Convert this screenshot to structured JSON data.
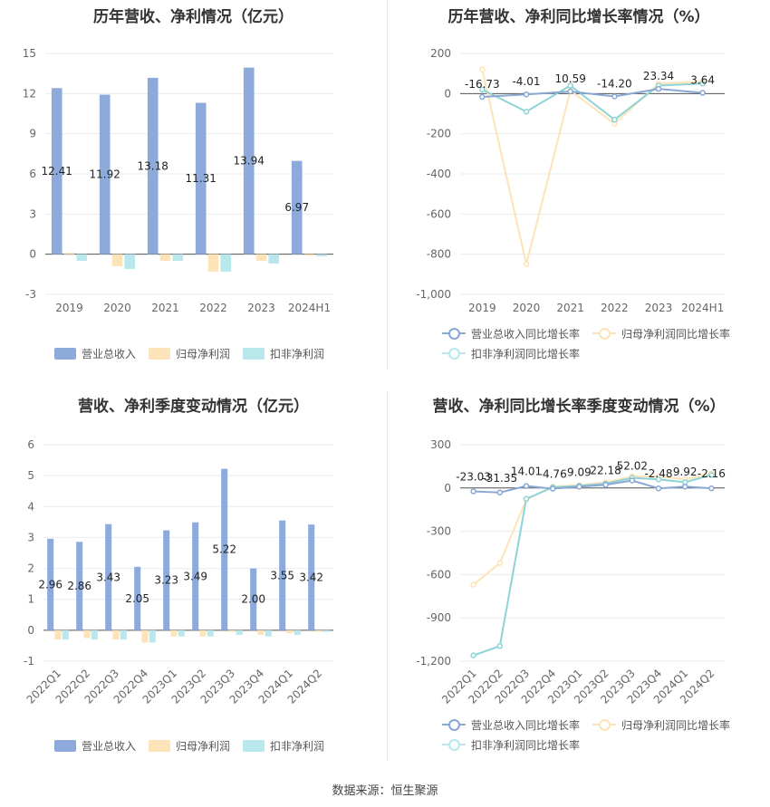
{
  "source": "数据来源：恒生聚源",
  "colors": {
    "revenue": "#8eaadb",
    "parent": "#fde3b8",
    "deducted": "#b9e8ec",
    "revenue_line": "#8aa8d4",
    "parent_line": "#fde3b8",
    "deducted_line": "#8dd3d7"
  },
  "charts": [
    {
      "title": "历年营收、净利情况（亿元）",
      "chart_data": {
        "type": "bar",
        "categories": [
          "2019",
          "2020",
          "2021",
          "2022",
          "2023",
          "2024H1"
        ],
        "yticks": [
          "15",
          "12",
          "9",
          "6",
          "3",
          "0",
          "-3"
        ],
        "ylim": [
          -3,
          15
        ],
        "series": [
          {
            "name": "营业总收入",
            "values": [
              12.41,
              11.92,
              13.18,
              11.31,
              13.94,
              6.97
            ],
            "labels": [
              "12.41",
              "11.92",
              "13.18",
              "11.31",
              "13.94",
              "6.97"
            ]
          },
          {
            "name": "归母净利润",
            "values": [
              0.1,
              -0.9,
              -0.5,
              -1.3,
              -0.5,
              -0.1
            ]
          },
          {
            "name": "扣非净利润",
            "values": [
              -0.5,
              -1.1,
              -0.5,
              -1.3,
              -0.7,
              -0.15
            ]
          }
        ]
      }
    },
    {
      "title": "历年营收、净利同比增长率情况（%）",
      "chart_data": {
        "type": "line",
        "categories": [
          "2019",
          "2020",
          "2021",
          "2022",
          "2023",
          "2024H1"
        ],
        "yticks": [
          "200",
          "0",
          "-200",
          "-400",
          "-600",
          "-800",
          "-1,000"
        ],
        "ylim": [
          -1000,
          200
        ],
        "series": [
          {
            "name": "营业总收入同比增长率",
            "values": [
              -16.73,
              -4.01,
              10.59,
              -14.2,
              23.34,
              3.64
            ],
            "labels": [
              "-16.73",
              "-4.01",
              "10.59",
              "-14.20",
              "23.34",
              "3.64"
            ]
          },
          {
            "name": "归母净利润同比增长率",
            "values": [
              120,
              -850,
              15,
              -150,
              50,
              60
            ]
          },
          {
            "name": "扣非净利润同比增长率",
            "values": [
              20,
              -90,
              40,
              -130,
              40,
              50
            ]
          }
        ]
      }
    },
    {
      "title": "营收、净利季度变动情况（亿元）",
      "chart_data": {
        "type": "bar",
        "categories": [
          "2022Q1",
          "2022Q2",
          "2022Q3",
          "2022Q4",
          "2023Q1",
          "2023Q2",
          "2023Q3",
          "2023Q4",
          "2024Q1",
          "2024Q2"
        ],
        "yticks": [
          "6",
          "5",
          "4",
          "3",
          "2",
          "1",
          "0",
          "-1"
        ],
        "ylim": [
          -1,
          6
        ],
        "series": [
          {
            "name": "营业总收入",
            "values": [
              2.96,
              2.86,
              3.43,
              2.05,
              3.23,
              3.49,
              5.22,
              2.0,
              3.55,
              3.42
            ],
            "labels": [
              "2.96",
              "2.86",
              "3.43",
              "2.05",
              "3.23",
              "3.49",
              "5.22",
              "2.00",
              "3.55",
              "3.42"
            ]
          },
          {
            "name": "归母净利润",
            "values": [
              -0.3,
              -0.25,
              -0.3,
              -0.4,
              -0.2,
              -0.2,
              -0.05,
              -0.15,
              -0.1,
              -0.05
            ]
          },
          {
            "name": "扣非净利润",
            "values": [
              -0.3,
              -0.3,
              -0.3,
              -0.4,
              -0.2,
              -0.2,
              -0.15,
              -0.2,
              -0.15,
              -0.05
            ]
          }
        ]
      }
    },
    {
      "title": "营收、净利同比增长率季度变动情况（%）",
      "chart_data": {
        "type": "line",
        "categories": [
          "2022Q1",
          "2022Q2",
          "2022Q3",
          "2022Q4",
          "2023Q1",
          "2023Q2",
          "2023Q3",
          "2023Q4",
          "2024Q1",
          "2024Q2"
        ],
        "yticks": [
          "300",
          "0",
          "-300",
          "-600",
          "-900",
          "-1,200"
        ],
        "ylim": [
          -1200,
          300
        ],
        "series": [
          {
            "name": "营业总收入同比增长率",
            "values": [
              -23.03,
              -31.35,
              14.01,
              -4.76,
              9.09,
              22.18,
              52.02,
              -2.48,
              9.92,
              -2.16
            ],
            "labels": [
              "-23.03",
              "-31.35",
              "14.01",
              "-4.76",
              "9.09",
              "22.18",
              "52.02",
              "-2.48",
              "9.92",
              "-2.16"
            ]
          },
          {
            "name": "归母净利润同比增长率",
            "values": [
              -670,
              -520,
              -80,
              10,
              20,
              40,
              80,
              80,
              60,
              100
            ]
          },
          {
            "name": "扣非净利润同比增长率",
            "values": [
              -1160,
              -1095,
              -75,
              5,
              15,
              30,
              70,
              60,
              40,
              90
            ]
          }
        ]
      }
    }
  ]
}
